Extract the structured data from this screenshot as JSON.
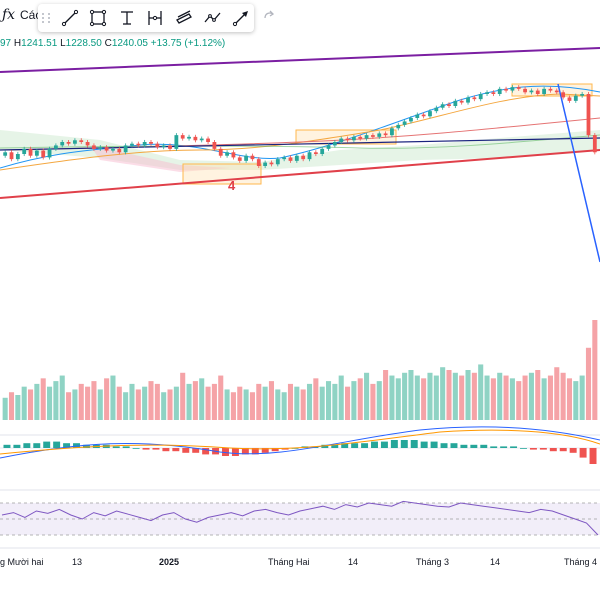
{
  "header": {
    "fx_symbol": "ƒx",
    "indicators_label": "Các",
    "redo_icon": "redo-arrow-icon"
  },
  "toolbar": {
    "tools": [
      {
        "name": "trend-line-tool",
        "icon": "trend-line-icon"
      },
      {
        "name": "rectangle-tool",
        "icon": "rectangle-icon"
      },
      {
        "name": "text-tool",
        "icon": "text-cursor-icon"
      },
      {
        "name": "long-position-tool",
        "icon": "range-icon"
      },
      {
        "name": "channel-tool",
        "icon": "channel-icon"
      },
      {
        "name": "path-tool",
        "icon": "path-icon"
      },
      {
        "name": "arrow-tool",
        "icon": "arrow-marker-icon"
      }
    ]
  },
  "ohlc": {
    "open_tail": "97",
    "h_key": "H",
    "high": "1241.51",
    "l_key": "L",
    "low": "1228.50",
    "c_key": "C",
    "close": "1240.05",
    "change": "+13.75 (+1.12%)"
  },
  "x_axis": [
    "g Mười hai",
    "13",
    "2025",
    "Tháng Hai",
    "14",
    "Tháng 3",
    "14",
    "Tháng 4"
  ],
  "annotations": {
    "wave_label": "4"
  },
  "colors": {
    "up": "#26a69a",
    "down": "#ef5350",
    "volume_up": "#8fd3c4",
    "volume_down": "#f5a3a7",
    "purple_line": "#7b1fa2",
    "red_line": "#e0404a",
    "navy_line": "#1a237e",
    "blue_line": "#2962ff"
  },
  "chart_data": {
    "type": "candlestick",
    "candles": [
      {
        "o": 60,
        "c": 62
      },
      {
        "o": 62,
        "c": 58
      },
      {
        "o": 58,
        "c": 61
      },
      {
        "o": 61,
        "c": 64
      },
      {
        "o": 64,
        "c": 60
      },
      {
        "o": 60,
        "c": 63
      },
      {
        "o": 63,
        "c": 59
      },
      {
        "o": 59,
        "c": 64
      },
      {
        "o": 64,
        "c": 66
      },
      {
        "o": 66,
        "c": 68
      },
      {
        "o": 68,
        "c": 67
      },
      {
        "o": 67,
        "c": 69
      },
      {
        "o": 69,
        "c": 68
      },
      {
        "o": 68,
        "c": 66
      },
      {
        "o": 66,
        "c": 64
      },
      {
        "o": 64,
        "c": 65
      },
      {
        "o": 65,
        "c": 63
      },
      {
        "o": 63,
        "c": 64
      },
      {
        "o": 64,
        "c": 62
      },
      {
        "o": 62,
        "c": 66
      },
      {
        "o": 66,
        "c": 67
      },
      {
        "o": 67,
        "c": 66
      },
      {
        "o": 66,
        "c": 68
      },
      {
        "o": 68,
        "c": 67
      },
      {
        "o": 67,
        "c": 65
      },
      {
        "o": 65,
        "c": 66
      },
      {
        "o": 66,
        "c": 64
      },
      {
        "o": 64,
        "c": 72
      },
      {
        "o": 72,
        "c": 70
      },
      {
        "o": 70,
        "c": 71
      },
      {
        "o": 71,
        "c": 69
      },
      {
        "o": 69,
        "c": 70
      },
      {
        "o": 70,
        "c": 68
      },
      {
        "o": 68,
        "c": 64
      },
      {
        "o": 64,
        "c": 60
      },
      {
        "o": 60,
        "c": 62
      },
      {
        "o": 62,
        "c": 59
      },
      {
        "o": 59,
        "c": 57
      },
      {
        "o": 57,
        "c": 60
      },
      {
        "o": 60,
        "c": 58
      },
      {
        "o": 58,
        "c": 54
      },
      {
        "o": 54,
        "c": 56
      },
      {
        "o": 56,
        "c": 55
      },
      {
        "o": 55,
        "c": 58
      },
      {
        "o": 58,
        "c": 59
      },
      {
        "o": 59,
        "c": 57
      },
      {
        "o": 57,
        "c": 60
      },
      {
        "o": 60,
        "c": 58
      },
      {
        "o": 58,
        "c": 62
      },
      {
        "o": 62,
        "c": 61
      },
      {
        "o": 61,
        "c": 64
      },
      {
        "o": 64,
        "c": 66
      },
      {
        "o": 66,
        "c": 68
      },
      {
        "o": 68,
        "c": 70
      },
      {
        "o": 70,
        "c": 69
      },
      {
        "o": 69,
        "c": 71
      },
      {
        "o": 71,
        "c": 70
      },
      {
        "o": 70,
        "c": 72
      },
      {
        "o": 72,
        "c": 71
      },
      {
        "o": 71,
        "c": 73
      },
      {
        "o": 73,
        "c": 72
      },
      {
        "o": 72,
        "c": 76
      },
      {
        "o": 76,
        "c": 78
      },
      {
        "o": 78,
        "c": 80
      },
      {
        "o": 80,
        "c": 82
      },
      {
        "o": 82,
        "c": 84
      },
      {
        "o": 84,
        "c": 83
      },
      {
        "o": 83,
        "c": 86
      },
      {
        "o": 86,
        "c": 88
      },
      {
        "o": 88,
        "c": 90
      },
      {
        "o": 90,
        "c": 89
      },
      {
        "o": 89,
        "c": 92
      },
      {
        "o": 92,
        "c": 91
      },
      {
        "o": 91,
        "c": 94
      },
      {
        "o": 94,
        "c": 93
      },
      {
        "o": 93,
        "c": 96
      },
      {
        "o": 96,
        "c": 97
      },
      {
        "o": 97,
        "c": 96
      },
      {
        "o": 96,
        "c": 99
      },
      {
        "o": 99,
        "c": 98
      },
      {
        "o": 98,
        "c": 100
      },
      {
        "o": 100,
        "c": 99
      },
      {
        "o": 99,
        "c": 97
      },
      {
        "o": 97,
        "c": 98
      },
      {
        "o": 98,
        "c": 96
      },
      {
        "o": 96,
        "c": 99
      },
      {
        "o": 99,
        "c": 98
      },
      {
        "o": 98,
        "c": 97
      },
      {
        "o": 97,
        "c": 94
      },
      {
        "o": 94,
        "c": 92
      },
      {
        "o": 92,
        "c": 95
      },
      {
        "o": 95,
        "c": 96
      },
      {
        "o": 96,
        "c": 72
      },
      {
        "o": 72,
        "c": 62
      }
    ],
    "volume": [
      8,
      10,
      9,
      12,
      11,
      13,
      15,
      12,
      14,
      16,
      10,
      11,
      13,
      12,
      14,
      11,
      15,
      16,
      12,
      10,
      13,
      11,
      12,
      14,
      13,
      10,
      11,
      12,
      17,
      13,
      14,
      15,
      12,
      13,
      16,
      11,
      10,
      12,
      11,
      10,
      13,
      12,
      14,
      11,
      10,
      13,
      12,
      11,
      13,
      15,
      12,
      14,
      13,
      16,
      12,
      14,
      15,
      17,
      13,
      14,
      18,
      16,
      15,
      17,
      18,
      16,
      15,
      17,
      16,
      19,
      18,
      17,
      16,
      18,
      17,
      20,
      16,
      15,
      17,
      16,
      15,
      14,
      16,
      17,
      18,
      15,
      16,
      19,
      17,
      15,
      14,
      16,
      26,
      36
    ],
    "macd_hist": [
      2,
      2,
      3,
      3,
      4,
      4,
      3,
      3,
      2,
      2,
      2,
      1,
      1,
      0,
      -1,
      -1,
      -2,
      -2,
      -3,
      -3,
      -4,
      -4,
      -5,
      -5,
      -4,
      -4,
      -3,
      -2,
      -1,
      0,
      1,
      1,
      2,
      2,
      3,
      3,
      3,
      4,
      4,
      5,
      5,
      5,
      4,
      4,
      3,
      3,
      2,
      2,
      2,
      1,
      1,
      1,
      0,
      -1,
      -1,
      -2,
      -2,
      -3,
      -6,
      -10
    ],
    "rsi": [
      55,
      58,
      52,
      60,
      57,
      62,
      55,
      50,
      58,
      54,
      60,
      56,
      52,
      48,
      55,
      58,
      50,
      46,
      52,
      55,
      58,
      54,
      60,
      62,
      58,
      55,
      60,
      63,
      66,
      62,
      68,
      65,
      70,
      68,
      66,
      72,
      70,
      68,
      66,
      65,
      70,
      68,
      66,
      64,
      62,
      60,
      58,
      62,
      60,
      55,
      50,
      45,
      30
    ],
    "ylim": [
      40,
      110
    ]
  }
}
